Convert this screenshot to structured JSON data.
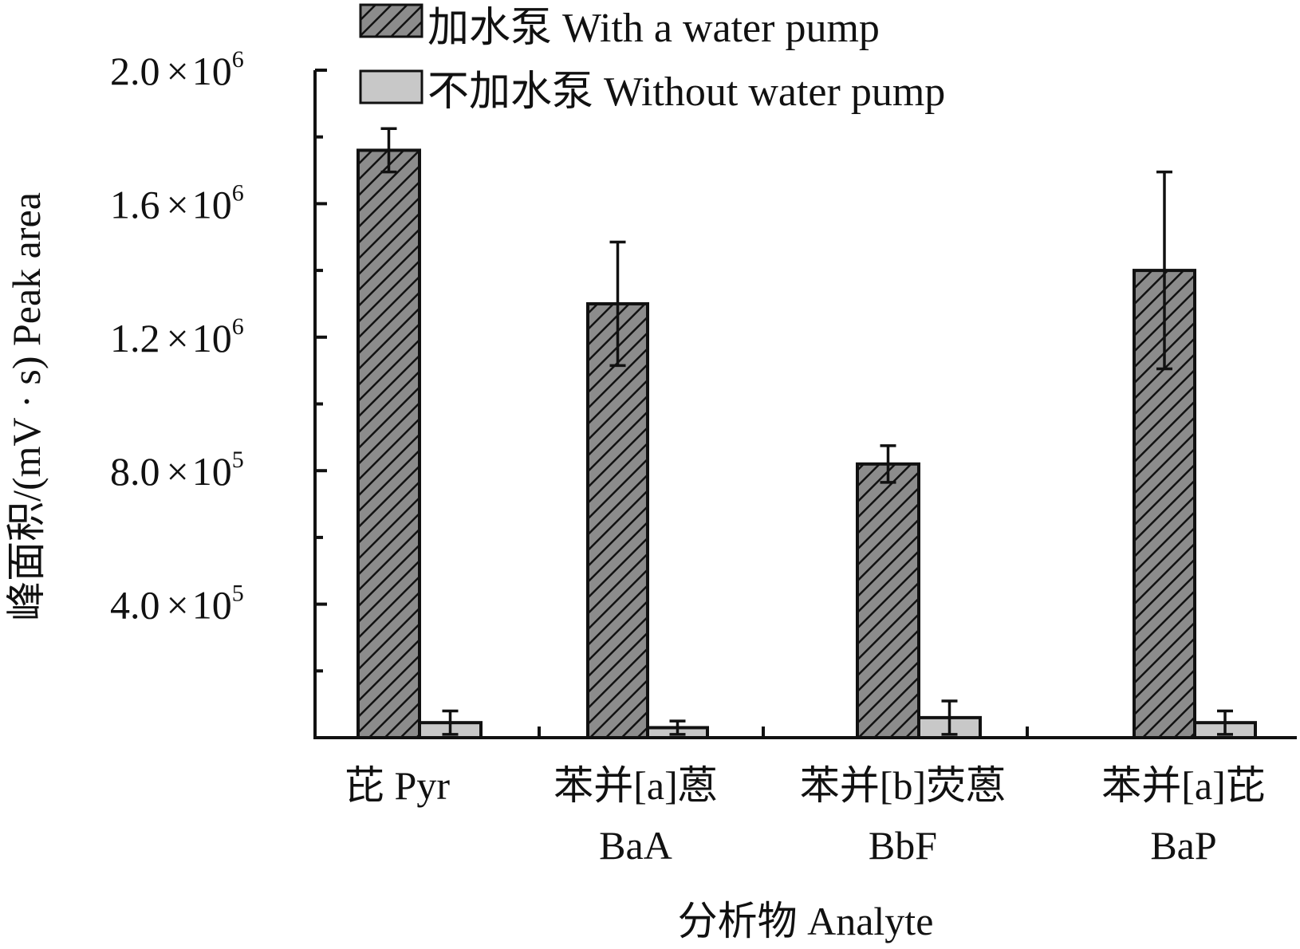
{
  "chart_data": {
    "type": "bar",
    "xlabel": "分析物 Analyte",
    "ylabel": "峰面积/(mV · s) Peak area",
    "ylim": [
      0,
      2000000
    ],
    "yticks": [
      {
        "value": 400000,
        "mantissa": "4.0",
        "times": "×",
        "base": "10",
        "exp": "5"
      },
      {
        "value": 800000,
        "mantissa": "8.0",
        "times": "×",
        "base": "10",
        "exp": "5"
      },
      {
        "value": 1200000,
        "mantissa": "1.2",
        "times": "×",
        "base": "10",
        "exp": "6"
      },
      {
        "value": 1600000,
        "mantissa": "1.6",
        "times": "×",
        "base": "10",
        "exp": "6"
      },
      {
        "value": 2000000,
        "mantissa": "2.0",
        "times": "×",
        "base": "10",
        "exp": "6"
      }
    ],
    "categories": [
      {
        "line1": "芘 Pyr",
        "line2": ""
      },
      {
        "line1": "苯并[a]蒽",
        "line2": "BaA"
      },
      {
        "line1": "苯并[b]荧蒽",
        "line2": "BbF"
      },
      {
        "line1": "苯并[a]芘",
        "line2": "BaP"
      }
    ],
    "series": [
      {
        "name": "加水泵 With a water pump",
        "fill": "#8c8c8c",
        "pattern": "diagonal-hatch",
        "values": [
          1760000,
          1300000,
          820000,
          1400000
        ],
        "errors": [
          65000,
          185000,
          55000,
          295000
        ]
      },
      {
        "name": "不加水泵 Without water pump",
        "fill": "#c8c8c8",
        "pattern": "solid",
        "values": [
          45000,
          30000,
          60000,
          45000
        ],
        "errors": [
          35000,
          20000,
          50000,
          35000
        ]
      }
    ],
    "legend_position": "top",
    "grid": false
  }
}
